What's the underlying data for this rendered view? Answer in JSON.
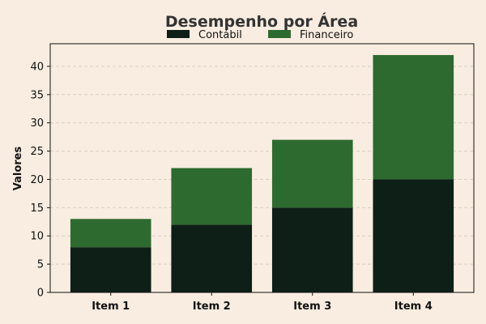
{
  "chart_data": {
    "type": "bar",
    "stacked": true,
    "title": "Desempenho por Área",
    "xlabel": "",
    "ylabel": "Valores",
    "categories": [
      "Item 1",
      "Item 2",
      "Item 3",
      "Item 4"
    ],
    "series": [
      {
        "name": "Contábil",
        "values": [
          8,
          12,
          15,
          20
        ],
        "color": "#0d1f16"
      },
      {
        "name": "Financeiro",
        "values": [
          5,
          10,
          12,
          22
        ],
        "color": "#2d6a2f"
      }
    ],
    "ylim": [
      0,
      44
    ],
    "yticks": [
      0,
      5,
      10,
      15,
      20,
      25,
      30,
      35,
      40
    ],
    "grid": "horizontal-dashed",
    "legend_position": "top-center",
    "background": "#f8ede0",
    "grid_color": "#d9cfc2"
  }
}
